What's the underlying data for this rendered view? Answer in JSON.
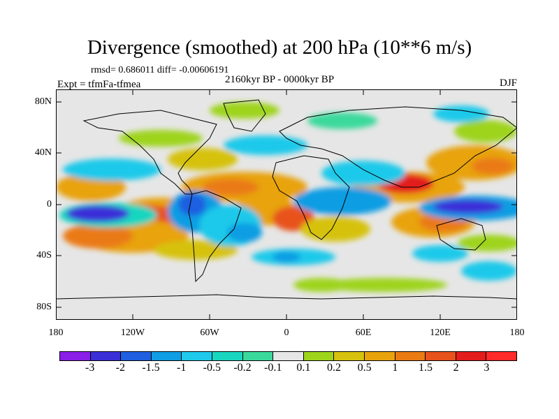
{
  "title": "Divergence (smoothed) at 200 hPa (10**6 m/s)",
  "stat_line": "rmsd= 0.686011 diff= -0.00606191",
  "expt_label": "Expt = tfmFa-tfmea",
  "period_label": "2160kyr BP - 0000kyr BP",
  "season_label": "DJF",
  "lat_labels": [
    "80N",
    "40N",
    "0",
    "40S",
    "80S"
  ],
  "lon_labels": [
    "180",
    "120W",
    "60W",
    "0",
    "60E",
    "120E",
    "180"
  ],
  "colorbar": {
    "labels": [
      "-3",
      "-2",
      "-1.5",
      "-1",
      "-0.5",
      "-0.2",
      "-0.1",
      "0.1",
      "0.2",
      "0.5",
      "1",
      "1.5",
      "2",
      "3"
    ],
    "colors": [
      "#8a1fe8",
      "#3b2fd8",
      "#1f5fe0",
      "#0f9de3",
      "#1ec9ea",
      "#19d6c0",
      "#3ad99b",
      "#e6e6e6",
      "#9ed41a",
      "#d6c20e",
      "#e8a30c",
      "#ea7a12",
      "#e8521c",
      "#e31c1c",
      "#ff2a2a"
    ]
  }
}
